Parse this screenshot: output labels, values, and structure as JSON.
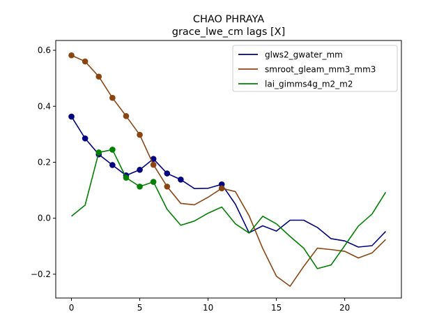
{
  "chart_data": {
    "type": "line",
    "title": "CHAO PHRAYA",
    "subtitle": "grace_lwe_cm lags [X]",
    "xlabel": "",
    "ylabel": "",
    "xlim": [
      -1.15,
      24.15
    ],
    "ylim": [
      -0.285,
      0.635
    ],
    "xticks": [
      0,
      5,
      10,
      15,
      20
    ],
    "xtick_labels": [
      "0",
      "5",
      "10",
      "15",
      "20"
    ],
    "yticks": [
      -0.2,
      0.0,
      0.2,
      0.4,
      0.6
    ],
    "ytick_labels": [
      "−0.2",
      "0.0",
      "0.2",
      "0.4",
      "0.6"
    ],
    "grid": false,
    "legend_position": "top-right",
    "x": [
      0,
      1,
      2,
      3,
      4,
      5,
      6,
      7,
      8,
      9,
      10,
      11,
      12,
      13,
      14,
      15,
      16,
      17,
      18,
      19,
      20,
      21,
      22,
      23
    ],
    "series": [
      {
        "name": "glws2_gwater_mm",
        "color": "#000080",
        "values": [
          0.363,
          0.285,
          0.228,
          0.19,
          0.153,
          0.173,
          0.212,
          0.16,
          0.138,
          0.106,
          0.107,
          0.121,
          0.05,
          -0.052,
          -0.027,
          -0.046,
          -0.007,
          -0.007,
          -0.033,
          -0.073,
          -0.081,
          -0.103,
          -0.098,
          -0.047
        ],
        "markers": [
          0,
          1,
          2,
          3,
          4,
          5,
          6,
          7,
          8,
          11
        ]
      },
      {
        "name": "smroot_gleam_mm3_mm3",
        "color": "#8B4513",
        "values": [
          0.582,
          0.56,
          0.506,
          0.43,
          0.365,
          0.298,
          0.191,
          0.113,
          0.053,
          0.048,
          0.075,
          0.107,
          0.095,
          0.009,
          -0.108,
          -0.207,
          -0.243,
          -0.172,
          -0.107,
          -0.112,
          -0.118,
          -0.142,
          -0.124,
          -0.076
        ],
        "markers": [
          0,
          1,
          2,
          3,
          4,
          5,
          6,
          7,
          11
        ]
      },
      {
        "name": "lai_gimms4g_m2_m2",
        "color": "#008000",
        "values": [
          0.007,
          0.047,
          0.235,
          0.245,
          0.145,
          0.113,
          0.13,
          0.032,
          -0.025,
          -0.01,
          0.018,
          0.04,
          -0.02,
          -0.053,
          0.007,
          -0.02,
          -0.065,
          -0.107,
          -0.18,
          -0.167,
          -0.098,
          -0.028,
          0.015,
          0.093
        ],
        "markers": [
          2,
          3,
          4,
          5,
          6
        ]
      }
    ]
  }
}
